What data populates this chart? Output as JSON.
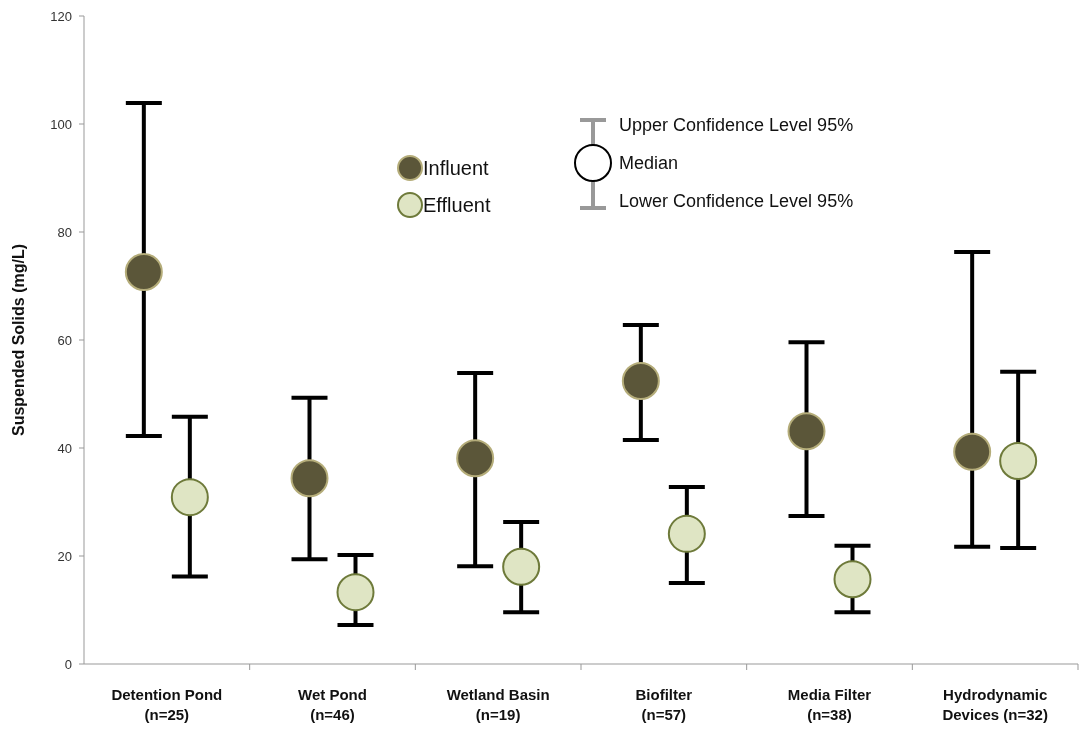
{
  "chart_data": {
    "type": "scatter",
    "ylabel": "Suspended Solids (mg/L)",
    "categories": [
      "Detention Pond\n(n=25)",
      "Wet Pond\n(n=46)",
      "Wetland Basin\n(n=19)",
      "Biofilter\n(n=57)",
      "Media Filter\n(n=38)",
      "Hydrodynamic\nDevices (n=32)"
    ],
    "series": [
      {
        "name": "Influent",
        "color": "#5b5639",
        "values": [
          72.6,
          34.4,
          38.1,
          52.4,
          43.1,
          39.3
        ],
        "errors": [
          [
            42.2,
            103.9
          ],
          [
            19.4,
            49.3
          ],
          [
            18.1,
            53.9
          ],
          [
            41.5,
            62.8
          ],
          [
            27.4,
            59.6
          ],
          [
            21.7,
            76.3
          ]
        ]
      },
      {
        "name": "Effluent",
        "color": "#dfe5c4",
        "values": [
          30.9,
          13.3,
          18.0,
          24.1,
          15.7,
          37.6
        ],
        "errors": [
          [
            16.2,
            45.8
          ],
          [
            7.2,
            20.2
          ],
          [
            9.6,
            26.3
          ],
          [
            15.0,
            32.8
          ],
          [
            9.6,
            21.9
          ],
          [
            21.5,
            54.1
          ]
        ]
      }
    ],
    "ylim": [
      0,
      120
    ],
    "yticks": [
      0,
      20,
      40,
      60,
      80,
      100,
      120
    ],
    "grid": false,
    "legend": "top",
    "marker": "circle",
    "annotations": [
      "Upper Confidence Level 95%",
      "Median",
      "Lower Confidence Level 95%"
    ]
  }
}
